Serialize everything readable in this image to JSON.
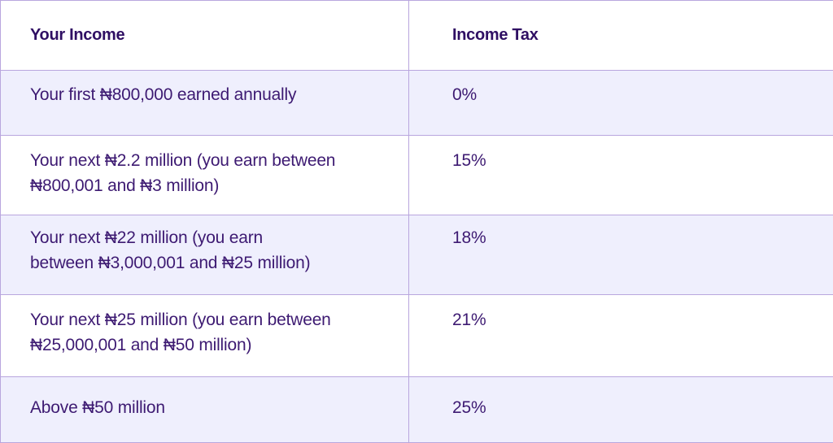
{
  "table": {
    "headers": {
      "income": "Your Income",
      "tax": "Income Tax"
    },
    "rows": [
      {
        "income": "Your first ₦800,000 earned annually",
        "tax": "0%"
      },
      {
        "income_line1": "Your next ₦2.2 million (you earn between",
        "income_line2": "₦800,001 and ₦3 million)",
        "tax": "15%"
      },
      {
        "income_line1": "Your next ₦22 million (you earn",
        "income_line2": "between ₦3,000,001 and ₦25 million)",
        "tax": "18%"
      },
      {
        "income_line1": "Your next ₦25 million (you earn between",
        "income_line2": "₦25,000,001 and ₦50 million)",
        "tax": "21%"
      },
      {
        "income": "Above ₦50 million",
        "tax": "25%"
      }
    ]
  },
  "colors": {
    "text": "#3d1a72",
    "border": "#b9a6de",
    "band": "#efeffd"
  }
}
